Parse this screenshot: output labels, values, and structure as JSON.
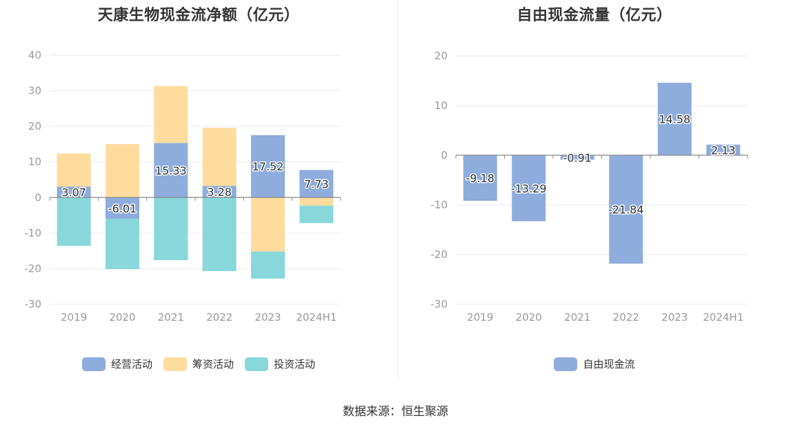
{
  "source_text": "数据来源：恒生聚源",
  "chart_data": [
    {
      "type": "bar",
      "stacked": true,
      "title": "天康生物现金流净额（亿元）",
      "categories": [
        "2019",
        "2020",
        "2021",
        "2022",
        "2023",
        "2024H1"
      ],
      "ylim": [
        -30,
        40
      ],
      "yticks": [
        40,
        30,
        20,
        10,
        0,
        -10,
        -20,
        -30
      ],
      "grid": true,
      "legend_position": "bottom",
      "series": [
        {
          "name": "经营活动",
          "color": "#8eacdc",
          "values": [
            3.07,
            -6.01,
            15.33,
            3.28,
            17.52,
            7.73
          ],
          "labels": [
            "3.07",
            "-6.01",
            "15.33",
            "3.28",
            "17.52",
            "7.73"
          ]
        },
        {
          "name": "筹资活动",
          "color": "#ffdc9e",
          "values": [
            9.3,
            15.0,
            16.0,
            16.3,
            -15.2,
            -2.3
          ]
        },
        {
          "name": "投资活动",
          "color": "#87d7db",
          "values": [
            -13.6,
            -14.1,
            -17.6,
            -20.7,
            -7.6,
            -4.9
          ]
        }
      ]
    },
    {
      "type": "bar",
      "title": "自由现金流量（亿元）",
      "categories": [
        "2019",
        "2020",
        "2021",
        "2022",
        "2023",
        "2024H1"
      ],
      "ylim": [
        -30,
        20
      ],
      "yticks": [
        20,
        10,
        0,
        -10,
        -20,
        -30
      ],
      "grid": true,
      "legend_position": "bottom",
      "series": [
        {
          "name": "自由现金流",
          "color": "#8eacdc",
          "values": [
            -9.18,
            -13.29,
            -0.91,
            -21.84,
            14.58,
            2.13
          ],
          "labels": [
            "-9.18",
            "-13.29",
            "-0.91",
            "-21.84",
            "14.58",
            "2.13"
          ]
        }
      ]
    }
  ]
}
